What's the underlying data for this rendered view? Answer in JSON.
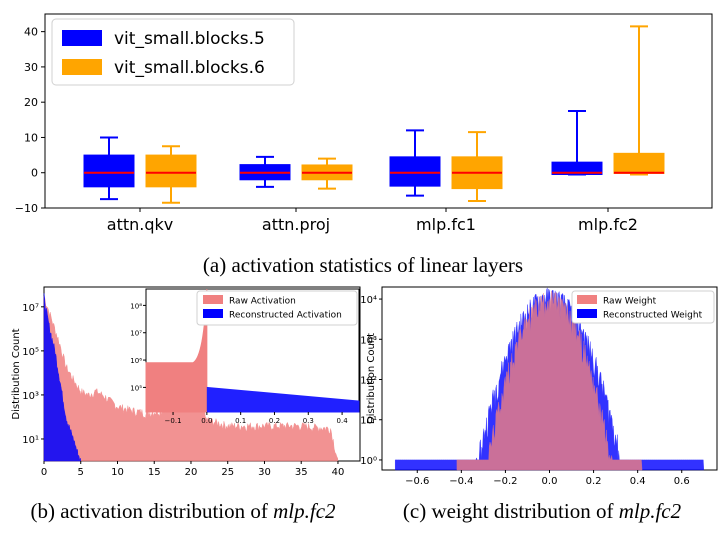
{
  "chart_data": [
    {
      "type": "box",
      "caption": "(a) activation statistics of linear layers",
      "categories": [
        "attn.qkv",
        "attn.proj",
        "mlp.fc1",
        "mlp.fc2"
      ],
      "ylim": [
        -10,
        45
      ],
      "yticks": [
        "40",
        "30",
        "20",
        "10",
        "0",
        "−10"
      ],
      "ytick_values": [
        40,
        30,
        20,
        10,
        0,
        -10
      ],
      "series": [
        {
          "name": "vit_small.blocks.5",
          "color": "#0000ff",
          "median_color": "#ff0000",
          "boxes": [
            {
              "whisker_low": -7.5,
              "q1": -4,
              "median": 0,
              "q3": 5,
              "whisker_high": 10
            },
            {
              "whisker_low": -4,
              "q1": -2,
              "median": 0,
              "q3": 2.3,
              "whisker_high": 4.5
            },
            {
              "whisker_low": -6.5,
              "q1": -3.8,
              "median": 0,
              "q3": 4.5,
              "whisker_high": 12
            },
            {
              "whisker_low": -0.5,
              "q1": -0.5,
              "median": 0,
              "q3": 3,
              "whisker_high": 17.5
            }
          ]
        },
        {
          "name": "vit_small.blocks.6",
          "color": "#ffa500",
          "median_color": "#ff0000",
          "boxes": [
            {
              "whisker_low": -8.5,
              "q1": -4,
              "median": 0,
              "q3": 5,
              "whisker_high": 7.5
            },
            {
              "whisker_low": -4.5,
              "q1": -2,
              "median": 0,
              "q3": 2.2,
              "whisker_high": 4
            },
            {
              "whisker_low": -8,
              "q1": -4.5,
              "median": 0,
              "q3": 4.5,
              "whisker_high": 11.5
            },
            {
              "whisker_low": -0.5,
              "q1": -0.2,
              "median": 0,
              "q3": 5.5,
              "whisker_high": 41.5
            }
          ]
        }
      ]
    },
    {
      "type": "histogram",
      "caption_prefix": "(b) activation distribution of ",
      "caption_em": "mlp.fc2",
      "ylabel": "Distribution Count",
      "yscale": "log",
      "xlim": [
        0,
        43
      ],
      "xticks": [
        "0",
        "5",
        "10",
        "15",
        "20",
        "25",
        "30",
        "35",
        "40"
      ],
      "xtick_values": [
        0,
        5,
        10,
        15,
        20,
        25,
        30,
        35,
        40
      ],
      "yticks": [
        "10⁷",
        "10⁵",
        "10³",
        "10¹"
      ],
      "ytick_values": [
        7,
        5,
        3,
        1
      ],
      "series": [
        {
          "name": "Raw Activation",
          "color": "#f08080",
          "x": [
            0,
            1,
            2,
            3,
            4,
            5,
            6,
            7,
            8,
            10,
            12,
            14,
            16,
            18,
            20,
            21.5,
            22,
            25,
            30,
            35,
            39,
            40
          ],
          "y": [
            30000000,
            3000000,
            300000,
            20000,
            5000,
            1500,
            1000,
            1500,
            1000,
            300,
            200,
            150,
            200,
            500,
            700,
            600,
            80,
            40,
            40,
            40,
            30,
            1
          ]
        },
        {
          "name": "Reconstructed Activation",
          "color": "#0000ff",
          "x": [
            0,
            0.5,
            1,
            1.5,
            2,
            2.5,
            3,
            3.5,
            4,
            4.5,
            5
          ],
          "y": [
            30000000,
            3000000,
            500000,
            100000,
            10000,
            1000,
            100,
            30,
            10,
            3,
            1
          ]
        }
      ],
      "inset": {
        "xticks": [
          "−0.1",
          "0.0",
          "0.1",
          "0.2",
          "0.3",
          "0.4"
        ],
        "xtick_values": [
          -0.1,
          0,
          0.1,
          0.2,
          0.3,
          0.4
        ],
        "yticks": [
          "10⁸",
          "10⁷",
          "10⁶",
          "10⁵"
        ],
        "ytick_values": [
          8,
          7,
          6,
          5
        ],
        "xlim": [
          -0.18,
          0.45
        ]
      }
    },
    {
      "type": "histogram",
      "caption_prefix": "(c) weight distribution of ",
      "caption_em": "mlp.fc2",
      "ylabel": "Distribution Count",
      "yscale": "log",
      "xlim": [
        -0.76,
        0.76
      ],
      "xticks": [
        "−0.6",
        "−0.4",
        "−0.2",
        "0.0",
        "0.2",
        "0.4",
        "0.6"
      ],
      "xtick_values": [
        -0.6,
        -0.4,
        -0.2,
        0,
        0.2,
        0.4,
        0.6
      ],
      "yticks": [
        "10⁴",
        "10³",
        "10²",
        "10¹",
        "10⁰"
      ],
      "ytick_values": [
        4,
        3,
        2,
        1,
        0
      ],
      "series": [
        {
          "name": "Raw Weight",
          "color": "#f08080",
          "sigma": 0.065,
          "peak": 10000,
          "range": [
            -0.42,
            0.42
          ]
        },
        {
          "name": "Reconstructed Weight",
          "color": "#0000ff",
          "sigma": 0.075,
          "peak": 12000,
          "range": [
            -0.7,
            0.7
          ]
        }
      ]
    }
  ]
}
